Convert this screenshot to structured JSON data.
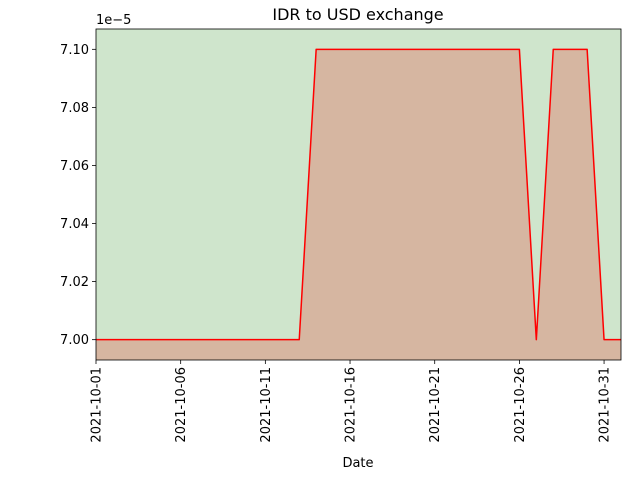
{
  "chart_data": {
    "type": "area",
    "title": "IDR to USD exchange",
    "xlabel": "Date",
    "ylabel": "",
    "y_offset_label": "1e−5",
    "xlim": [
      "2021-10-01",
      "2021-11-01"
    ],
    "ylim": [
      6.993,
      7.107
    ],
    "x_ticks": [
      "2021-10-01",
      "2021-10-06",
      "2021-10-11",
      "2021-10-16",
      "2021-10-21",
      "2021-10-26",
      "2021-10-31"
    ],
    "y_ticks": [
      7.0,
      7.02,
      7.04,
      7.06,
      7.08,
      7.1
    ],
    "y_tick_labels": [
      "7.00",
      "7.02",
      "7.04",
      "7.06",
      "7.08",
      "7.10"
    ],
    "grid": false,
    "background_color": "#cfe5cc",
    "fill_color": "#d6b6a1",
    "line_color": "#ff0000",
    "series": [
      {
        "x": [
          "2021-10-01",
          "2021-10-02",
          "2021-10-03",
          "2021-10-04",
          "2021-10-05",
          "2021-10-06",
          "2021-10-07",
          "2021-10-08",
          "2021-10-09",
          "2021-10-10",
          "2021-10-11",
          "2021-10-12",
          "2021-10-13",
          "2021-10-14",
          "2021-10-15",
          "2021-10-16",
          "2021-10-17",
          "2021-10-18",
          "2021-10-19",
          "2021-10-20",
          "2021-10-21",
          "2021-10-22",
          "2021-10-23",
          "2021-10-24",
          "2021-10-25",
          "2021-10-26",
          "2021-10-27",
          "2021-10-28",
          "2021-10-29",
          "2021-10-30",
          "2021-10-31",
          "2021-11-01"
        ],
        "values": [
          7.0,
          7.0,
          7.0,
          7.0,
          7.0,
          7.0,
          7.0,
          7.0,
          7.0,
          7.0,
          7.0,
          7.0,
          7.0,
          7.1,
          7.1,
          7.1,
          7.1,
          7.1,
          7.1,
          7.1,
          7.1,
          7.1,
          7.1,
          7.1,
          7.1,
          7.1,
          7.0,
          7.1,
          7.1,
          7.1,
          7.0,
          7.0
        ]
      }
    ]
  }
}
